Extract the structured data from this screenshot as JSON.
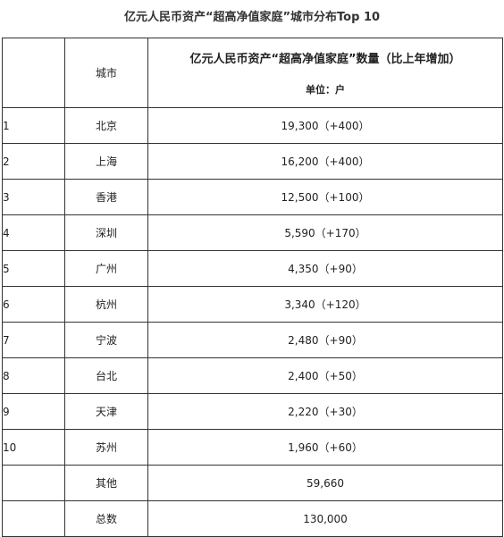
{
  "title": "亿元人民币资产“超高净值家庭”城市分布Top 10",
  "header": {
    "rank": "",
    "city": "城市",
    "value_main": "亿元人民币资产“超高净值家庭”数量（比上年增加）",
    "value_unit": "单位：户"
  },
  "rows": [
    {
      "rank": "1",
      "city": "北京",
      "value": "19,300（+400）"
    },
    {
      "rank": "2",
      "city": "上海",
      "value": "16,200（+400）"
    },
    {
      "rank": "3",
      "city": "香港",
      "value": "12,500（+100）"
    },
    {
      "rank": "4",
      "city": "深圳",
      "value": "5,590（+170）"
    },
    {
      "rank": "5",
      "city": "广州",
      "value": "4,350（+90）"
    },
    {
      "rank": "6",
      "city": "杭州",
      "value": "3,340（+120）"
    },
    {
      "rank": "7",
      "city": "宁波",
      "value": "2,480（+90）"
    },
    {
      "rank": "8",
      "city": "台北",
      "value": "2,400（+50）"
    },
    {
      "rank": "9",
      "city": "天津",
      "value": "2,220（+30）"
    },
    {
      "rank": "10",
      "city": "苏州",
      "value": "1,960（+60）"
    },
    {
      "rank": "",
      "city": "其他",
      "value": "59,660"
    },
    {
      "rank": "",
      "city": "总数",
      "value": "130,000"
    }
  ]
}
